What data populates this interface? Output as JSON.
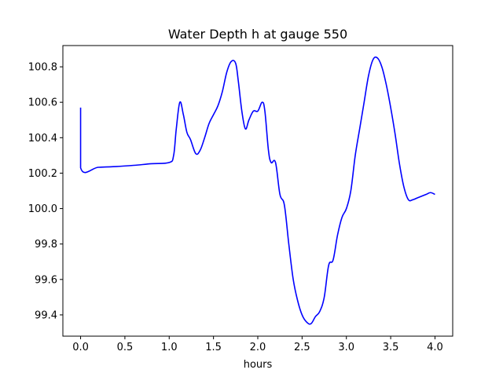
{
  "chart_data": {
    "type": "line",
    "title": "Water Depth h at gauge 550",
    "xlabel": "hours",
    "ylabel": "",
    "xlim": [
      -0.2,
      4.2
    ],
    "ylim": [
      99.28,
      100.92
    ],
    "x_ticks": [
      0.0,
      0.5,
      1.0,
      1.5,
      2.0,
      2.5,
      3.0,
      3.5,
      4.0
    ],
    "x_tick_labels": [
      "0.0",
      "0.5",
      "1.0",
      "1.5",
      "2.0",
      "2.5",
      "3.0",
      "3.5",
      "4.0"
    ],
    "y_ticks": [
      99.4,
      99.6,
      99.8,
      100.0,
      100.2,
      100.4,
      100.6,
      100.8
    ],
    "y_tick_labels": [
      "99.4",
      "99.6",
      "99.8",
      "100.0",
      "100.2",
      "100.4",
      "100.6",
      "100.8"
    ],
    "grid": false,
    "series": [
      {
        "color": "#0000ff",
        "points": [
          [
            0.0,
            100.57
          ],
          [
            0.0,
            100.23
          ],
          [
            0.2,
            100.233
          ],
          [
            0.4,
            100.237
          ],
          [
            0.6,
            100.244
          ],
          [
            0.8,
            100.253
          ],
          [
            1.0,
            100.26
          ],
          [
            1.05,
            100.3
          ],
          [
            1.08,
            100.45
          ],
          [
            1.12,
            100.6
          ],
          [
            1.16,
            100.53
          ],
          [
            1.2,
            100.43
          ],
          [
            1.24,
            100.39
          ],
          [
            1.3,
            100.31
          ],
          [
            1.35,
            100.33
          ],
          [
            1.4,
            100.4
          ],
          [
            1.45,
            100.48
          ],
          [
            1.5,
            100.53
          ],
          [
            1.55,
            100.58
          ],
          [
            1.6,
            100.66
          ],
          [
            1.65,
            100.77
          ],
          [
            1.7,
            100.83
          ],
          [
            1.75,
            100.82
          ],
          [
            1.78,
            100.72
          ],
          [
            1.82,
            100.55
          ],
          [
            1.86,
            100.45
          ],
          [
            1.9,
            100.5
          ],
          [
            1.95,
            100.55
          ],
          [
            2.0,
            100.55
          ],
          [
            2.05,
            100.6
          ],
          [
            2.08,
            100.55
          ],
          [
            2.12,
            100.33
          ],
          [
            2.15,
            100.26
          ],
          [
            2.2,
            100.26
          ],
          [
            2.25,
            100.08
          ],
          [
            2.3,
            100.02
          ],
          [
            2.35,
            99.8
          ],
          [
            2.4,
            99.6
          ],
          [
            2.45,
            99.48
          ],
          [
            2.5,
            99.4
          ],
          [
            2.55,
            99.36
          ],
          [
            2.6,
            99.35
          ],
          [
            2.65,
            99.39
          ],
          [
            2.7,
            99.42
          ],
          [
            2.75,
            99.5
          ],
          [
            2.8,
            99.68
          ],
          [
            2.85,
            99.71
          ],
          [
            2.9,
            99.85
          ],
          [
            2.95,
            99.95
          ],
          [
            3.0,
            100.0
          ],
          [
            3.05,
            100.1
          ],
          [
            3.1,
            100.3
          ],
          [
            3.15,
            100.45
          ],
          [
            3.2,
            100.6
          ],
          [
            3.25,
            100.75
          ],
          [
            3.3,
            100.84
          ],
          [
            3.35,
            100.85
          ],
          [
            3.4,
            100.8
          ],
          [
            3.45,
            100.7
          ],
          [
            3.5,
            100.57
          ],
          [
            3.55,
            100.42
          ],
          [
            3.6,
            100.25
          ],
          [
            3.65,
            100.12
          ],
          [
            3.7,
            100.05
          ],
          [
            3.75,
            100.05
          ],
          [
            3.8,
            100.06
          ],
          [
            3.85,
            100.07
          ],
          [
            3.9,
            100.08
          ],
          [
            3.95,
            100.09
          ],
          [
            4.0,
            100.08
          ]
        ]
      }
    ]
  }
}
